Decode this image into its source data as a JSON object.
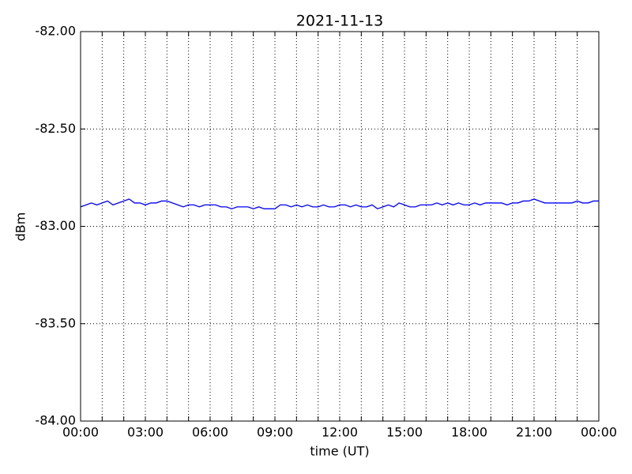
{
  "chart_data": {
    "type": "line",
    "title": "2021-11-13",
    "x_label": "time (UT)",
    "y_label": "dBm",
    "x": [
      0,
      0.25,
      0.5,
      0.75,
      1,
      1.25,
      1.5,
      1.75,
      2,
      2.25,
      2.5,
      2.75,
      3,
      3.25,
      3.5,
      3.75,
      4,
      4.25,
      4.5,
      4.75,
      5,
      5.25,
      5.5,
      5.75,
      6,
      6.25,
      6.5,
      6.75,
      7,
      7.25,
      7.5,
      7.75,
      8,
      8.25,
      8.5,
      8.75,
      9,
      9.25,
      9.5,
      9.75,
      10,
      10.25,
      10.5,
      10.75,
      11,
      11.25,
      11.5,
      11.75,
      12,
      12.25,
      12.5,
      12.75,
      13,
      13.25,
      13.5,
      13.75,
      14,
      14.25,
      14.5,
      14.75,
      15,
      15.25,
      15.5,
      15.75,
      16,
      16.25,
      16.5,
      16.75,
      17,
      17.25,
      17.5,
      17.75,
      18,
      18.25,
      18.5,
      18.75,
      19,
      19.25,
      19.5,
      19.75,
      20,
      20.25,
      20.5,
      20.75,
      21,
      21.25,
      21.5,
      21.75,
      22,
      22.25,
      22.5,
      22.75,
      23,
      23.25,
      23.5,
      23.75,
      24
    ],
    "series": [
      {
        "name": "dBm",
        "color": "#0000ff",
        "values": [
          -82.9,
          -82.89,
          -82.88,
          -82.89,
          -82.88,
          -82.87,
          -82.89,
          -82.88,
          -82.87,
          -82.86,
          -82.88,
          -82.88,
          -82.89,
          -82.88,
          -82.88,
          -82.87,
          -82.87,
          -82.88,
          -82.89,
          -82.9,
          -82.89,
          -82.89,
          -82.9,
          -82.89,
          -82.89,
          -82.89,
          -82.9,
          -82.9,
          -82.91,
          -82.9,
          -82.9,
          -82.9,
          -82.91,
          -82.9,
          -82.91,
          -82.91,
          -82.91,
          -82.89,
          -82.89,
          -82.9,
          -82.89,
          -82.9,
          -82.89,
          -82.9,
          -82.9,
          -82.89,
          -82.9,
          -82.9,
          -82.89,
          -82.89,
          -82.9,
          -82.89,
          -82.9,
          -82.9,
          -82.89,
          -82.91,
          -82.9,
          -82.89,
          -82.9,
          -82.88,
          -82.89,
          -82.9,
          -82.9,
          -82.89,
          -82.89,
          -82.89,
          -82.88,
          -82.89,
          -82.88,
          -82.89,
          -82.88,
          -82.89,
          -82.89,
          -82.88,
          -82.89,
          -82.88,
          -82.88,
          -82.88,
          -82.88,
          -82.89,
          -82.88,
          -82.88,
          -82.87,
          -82.87,
          -82.86,
          -82.87,
          -82.88,
          -82.88,
          -82.88,
          -82.88,
          -82.88,
          -82.88,
          -82.87,
          -82.88,
          -82.88,
          -82.87,
          -82.87
        ]
      }
    ],
    "xlim": [
      0,
      24
    ],
    "xticks": [
      {
        "value": 0,
        "label": "00:00"
      },
      {
        "value": 1,
        "label": null
      },
      {
        "value": 2,
        "label": null
      },
      {
        "value": 3,
        "label": "03:00"
      },
      {
        "value": 4,
        "label": null
      },
      {
        "value": 5,
        "label": null
      },
      {
        "value": 6,
        "label": "06:00"
      },
      {
        "value": 7,
        "label": null
      },
      {
        "value": 8,
        "label": null
      },
      {
        "value": 9,
        "label": "09:00"
      },
      {
        "value": 10,
        "label": null
      },
      {
        "value": 11,
        "label": null
      },
      {
        "value": 12,
        "label": "12:00"
      },
      {
        "value": 13,
        "label": null
      },
      {
        "value": 14,
        "label": null
      },
      {
        "value": 15,
        "label": "15:00"
      },
      {
        "value": 16,
        "label": null
      },
      {
        "value": 17,
        "label": null
      },
      {
        "value": 18,
        "label": "18:00"
      },
      {
        "value": 19,
        "label": null
      },
      {
        "value": 20,
        "label": null
      },
      {
        "value": 21,
        "label": "21:00"
      },
      {
        "value": 22,
        "label": null
      },
      {
        "value": 23,
        "label": null
      },
      {
        "value": 24,
        "label": "00:00"
      }
    ],
    "ylim": [
      -84,
      -82
    ],
    "yticks": [
      {
        "value": -84,
        "label": "-84.00"
      },
      {
        "value": -83.5,
        "label": "-83.50"
      },
      {
        "value": -83,
        "label": "-83.00"
      },
      {
        "value": -82.5,
        "label": "-82.50"
      },
      {
        "value": -82,
        "label": "-82.00"
      }
    ],
    "grid": true
  }
}
